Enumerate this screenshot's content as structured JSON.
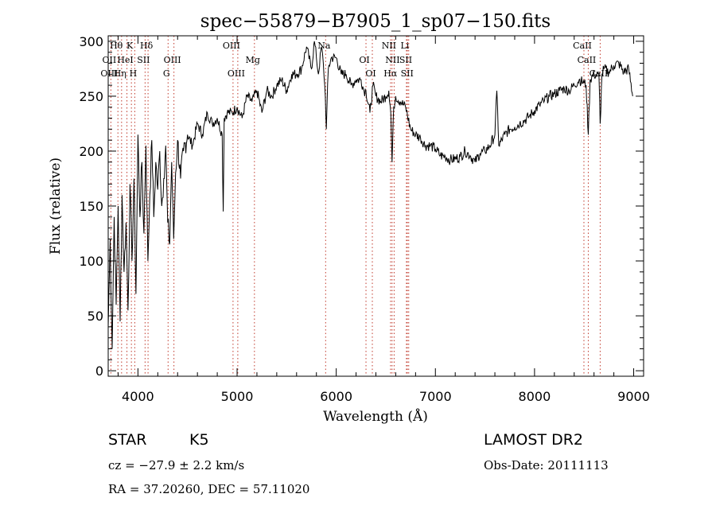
{
  "chart_data": {
    "type": "line",
    "title": "spec−55879−B7905_1_sp07−150.fits",
    "xlabel": "Wavelength (Å)",
    "ylabel": "Flux (relative)",
    "xlim": [
      3700,
      9100
    ],
    "ylim": [
      -5,
      305
    ],
    "xticks": [
      4000,
      5000,
      6000,
      7000,
      8000,
      9000
    ],
    "yticks": [
      0,
      50,
      100,
      150,
      200,
      250,
      300
    ],
    "grid": false,
    "series": [
      {
        "x": [
          3700,
          3720,
          3740,
          3760,
          3780,
          3800,
          3820,
          3840,
          3860,
          3880,
          3900,
          3920,
          3940,
          3960,
          3980,
          4000,
          4020,
          4040,
          4060,
          4080,
          4100,
          4120,
          4140,
          4160,
          4180,
          4200,
          4220,
          4240,
          4260,
          4280,
          4300,
          4320,
          4340,
          4360,
          4380,
          4400,
          4430,
          4460,
          4500,
          4550,
          4600,
          4650,
          4700,
          4750,
          4800,
          4850,
          4860,
          4870,
          4900,
          4950,
          5000,
          5050,
          5100,
          5150,
          5200,
          5250,
          5300,
          5350,
          5400,
          5450,
          5500,
          5550,
          5600,
          5650,
          5700,
          5750,
          5780,
          5800,
          5820,
          5850,
          5870,
          5890,
          5900,
          5920,
          5950,
          6000,
          6050,
          6100,
          6150,
          6200,
          6250,
          6280,
          6300,
          6340,
          6370,
          6400,
          6450,
          6500,
          6530,
          6550,
          6563,
          6580,
          6600,
          6650,
          6700,
          6750,
          6800,
          6850,
          6900,
          6950,
          7000,
          7050,
          7100,
          7150,
          7200,
          7250,
          7300,
          7350,
          7400,
          7450,
          7500,
          7550,
          7600,
          7620,
          7640,
          7700,
          7750,
          7800,
          7850,
          7900,
          7950,
          8000,
          8050,
          8100,
          8150,
          8200,
          8250,
          8300,
          8350,
          8400,
          8450,
          8500,
          8520,
          8542,
          8560,
          8600,
          8650,
          8662,
          8680,
          8700,
          8750,
          8800,
          8850,
          8900,
          8950,
          8990
        ],
        "y": [
          40,
          120,
          20,
          140,
          60,
          150,
          45,
          160,
          90,
          135,
          55,
          170,
          100,
          175,
          70,
          215,
          140,
          190,
          125,
          205,
          100,
          160,
          210,
          140,
          190,
          165,
          200,
          150,
          175,
          205,
          135,
          115,
          190,
          120,
          180,
          210,
          175,
          200,
          215,
          205,
          225,
          215,
          235,
          225,
          230,
          215,
          145,
          230,
          235,
          235,
          240,
          230,
          250,
          245,
          255,
          235,
          255,
          250,
          260,
          265,
          255,
          270,
          270,
          275,
          295,
          275,
          300,
          285,
          270,
          295,
          280,
          250,
          220,
          275,
          285,
          285,
          270,
          270,
          260,
          265,
          265,
          255,
          255,
          235,
          260,
          250,
          245,
          250,
          255,
          235,
          190,
          240,
          250,
          245,
          240,
          220,
          215,
          212,
          205,
          205,
          202,
          196,
          195,
          192,
          193,
          195,
          200,
          196,
          190,
          198,
          200,
          205,
          215,
          255,
          205,
          215,
          220,
          222,
          225,
          228,
          232,
          237,
          242,
          246,
          250,
          252,
          255,
          257,
          255,
          260,
          265,
          262,
          260,
          215,
          265,
          270,
          268,
          225,
          270,
          275,
          272,
          278,
          280,
          272,
          275,
          250
        ]
      }
    ],
    "spectral_lines": [
      {
        "label": "Hθ",
        "x": 3798,
        "row": 0
      },
      {
        "label": "K",
        "x": 3934,
        "row": 0
      },
      {
        "label": "Hδ",
        "x": 4102,
        "row": 0
      },
      {
        "label": "OIII",
        "x": 4959,
        "row": 0
      },
      {
        "label": "NII",
        "x": 6548,
        "row": 0
      },
      {
        "label": "Li",
        "x": 6708,
        "row": 0
      },
      {
        "label": "CaII",
        "x": 8498,
        "row": 0
      },
      {
        "label": "OII",
        "x": 3727,
        "row": 1
      },
      {
        "label": "HeI",
        "x": 3889,
        "row": 1
      },
      {
        "label": "SII",
        "x": 4072,
        "row": 1
      },
      {
        "label": "OIII",
        "x": 4363,
        "row": 1
      },
      {
        "label": "Mg",
        "x": 5175,
        "row": 1
      },
      {
        "label": "OI",
        "x": 6300,
        "row": 1
      },
      {
        "label": "NII",
        "x": 6584,
        "row": 1
      },
      {
        "label": "SII",
        "x": 6717,
        "row": 1
      },
      {
        "label": "CaII",
        "x": 8542,
        "row": 1
      },
      {
        "label": "OIII",
        "x": 3727,
        "row": 2
      },
      {
        "label": "Hη",
        "x": 3835,
        "row": 2
      },
      {
        "label": "H",
        "x": 3968,
        "row": 2
      },
      {
        "label": "G",
        "x": 4304,
        "row": 2
      },
      {
        "label": "OIII",
        "x": 5007,
        "row": 2
      },
      {
        "label": "OI",
        "x": 6364,
        "row": 2
      },
      {
        "label": "Hα",
        "x": 6563,
        "row": 2
      },
      {
        "label": "SII",
        "x": 6731,
        "row": 2
      },
      {
        "label": "CaII",
        "x": 8662,
        "row": 2
      },
      {
        "label": "Na",
        "x": 5893,
        "row": 0
      }
    ],
    "line_markers": [
      3727,
      3798,
      3835,
      3889,
      3934,
      3968,
      4072,
      4102,
      4304,
      4363,
      4959,
      5007,
      5175,
      5893,
      6300,
      6364,
      6548,
      6563,
      6584,
      6708,
      6717,
      6731,
      8498,
      8542,
      8662
    ]
  },
  "info": {
    "object_class": "STAR",
    "subclass": "K5",
    "survey": "LAMOST DR2",
    "redshift": "cz = −27.9 ± 2.2 km/s",
    "obs_date": "Obs-Date: 20111113",
    "coords": "RA =  37.20260, DEC =  57.11020"
  }
}
